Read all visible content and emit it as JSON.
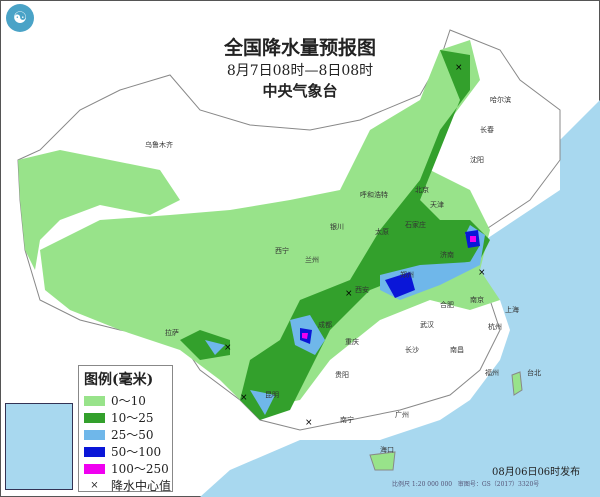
{
  "header": {
    "title": "全国降水量预报图",
    "period": "8月7日08时—8日08时",
    "issuer": "中央气象台"
  },
  "legend": {
    "title": "图例(毫米)",
    "items": [
      {
        "label": "0～10",
        "color": "#98e38a"
      },
      {
        "label": "10～25",
        "color": "#33a02c"
      },
      {
        "label": "25～50",
        "color": "#6fb7ea"
      },
      {
        "label": "50～100",
        "color": "#0a16d8"
      },
      {
        "label": "100～250",
        "color": "#f000f0"
      }
    ],
    "center_marker": {
      "symbol": "×",
      "label": "降水中心值"
    }
  },
  "footer": {
    "issued": "08月06日06时发布",
    "scale": "比例尺 1:20 000 000",
    "approval": "审图号：GS（2017）3320号"
  },
  "cities": [
    "哈尔滨",
    "长春",
    "沈阳",
    "乌鲁木齐",
    "呼和浩特",
    "北京",
    "天津",
    "银川",
    "太原",
    "石家庄",
    "西宁",
    "兰州",
    "济南",
    "郑州",
    "西安",
    "合肥",
    "南京",
    "上海",
    "成都",
    "武汉",
    "杭州",
    "重庆",
    "拉萨",
    "长沙",
    "南昌",
    "福州",
    "贵阳",
    "台北",
    "昆明",
    "南宁",
    "广州",
    "海口"
  ],
  "colors": {
    "sea": "#a8d8ef",
    "land": "#ffffff",
    "border": "#888888"
  }
}
